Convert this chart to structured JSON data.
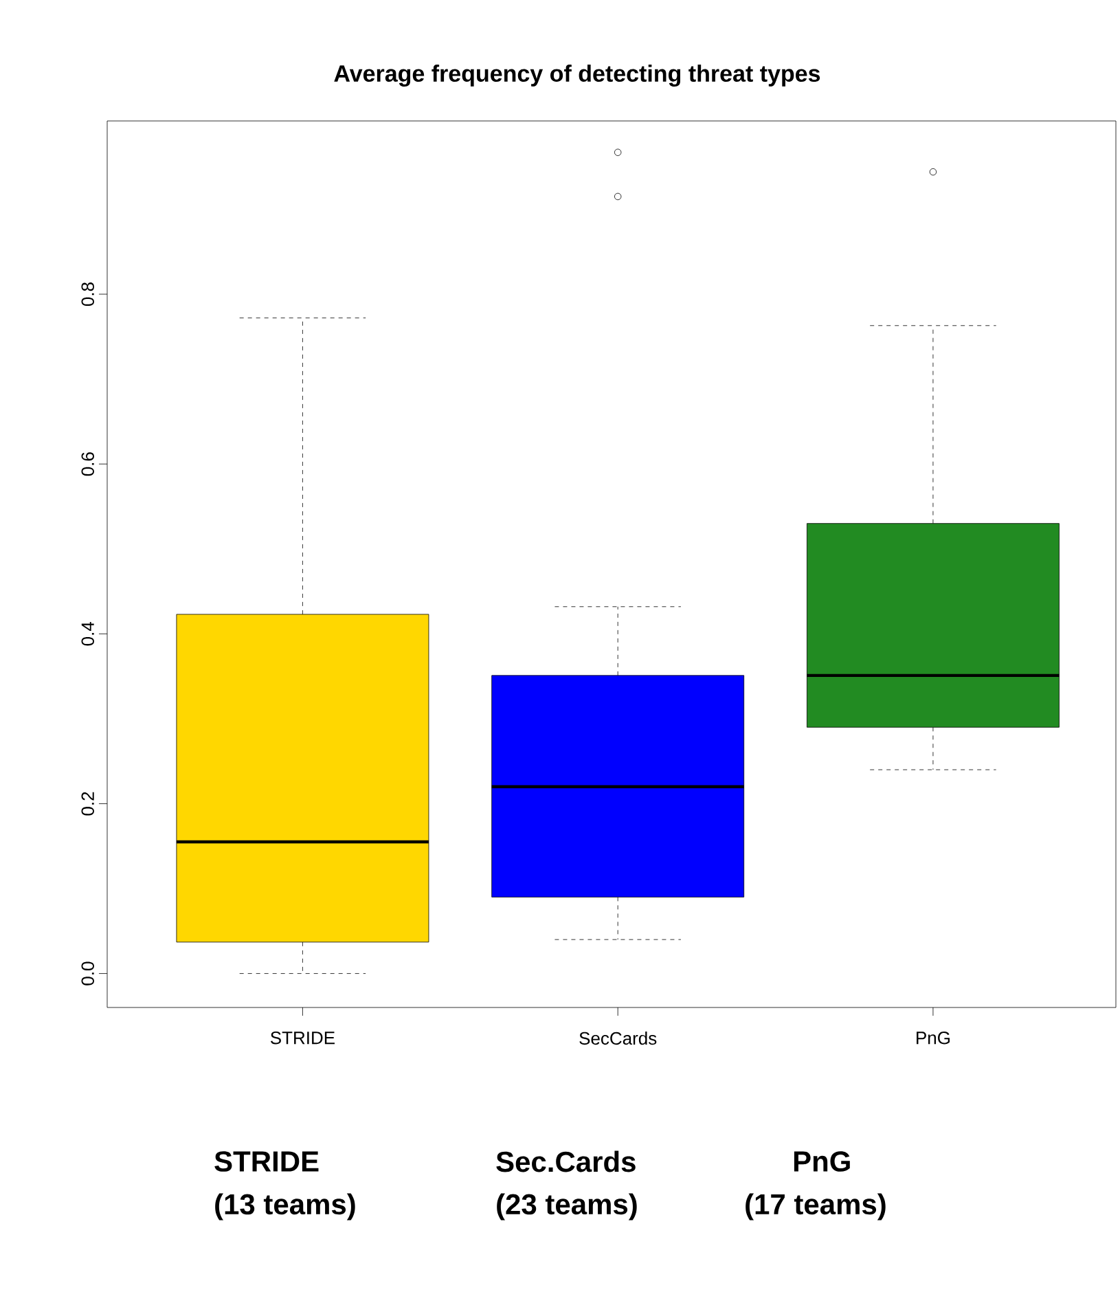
{
  "chart_data": {
    "type": "box",
    "title": "Average frequency of detecting threat types",
    "categories": [
      "STRIDE",
      "SecCards",
      "PnG"
    ],
    "colors": [
      "#ffd700",
      "#0000ff",
      "#228b22"
    ],
    "boxes": [
      {
        "low": 0,
        "q1": 0.037,
        "median": 0.155,
        "q3": 0.423,
        "high": 0.772
      },
      {
        "low": 0.04,
        "q1": 0.09,
        "median": 0.22,
        "q3": 0.351,
        "high": 0.432,
        "outliers": [
          0.967,
          0.915
        ]
      },
      {
        "low": 0.24,
        "q1": 0.29,
        "median": 0.351,
        "q3": 0.53,
        "high": 0.763,
        "outliers": [
          0.944
        ]
      }
    ],
    "ylim": [
      -0.04,
      1.004
    ],
    "yticks": [
      {
        "value": 0,
        "label": "0.0"
      },
      {
        "value": 0.2,
        "label": "0.2"
      },
      {
        "value": 0.4,
        "label": "0.4"
      },
      {
        "value": 0.6,
        "label": "0.6"
      },
      {
        "value": 0.8,
        "label": "0.8"
      }
    ],
    "grid": false,
    "annotations": [
      "STRIDE",
      "Sec.Cards",
      "PnG",
      "(13 teams)",
      "(23 teams)",
      "(17 teams)"
    ]
  }
}
